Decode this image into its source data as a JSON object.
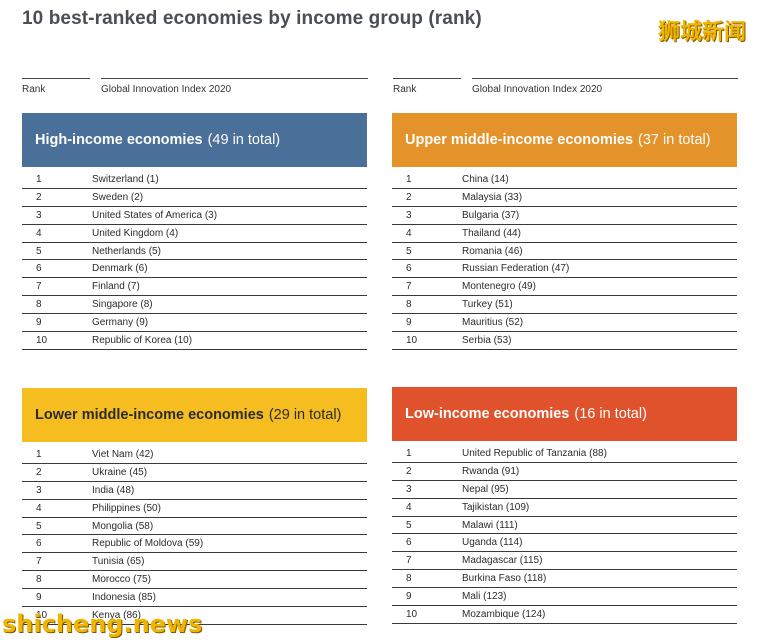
{
  "title": "10 best-ranked economies by income group (rank)",
  "watermark_top": "狮城新闻",
  "watermark_bottom": "shicheng.news",
  "column_headers": {
    "rank": "Rank",
    "index": "Global Innovation Index 2020"
  },
  "groups": [
    {
      "name": "High-income economies",
      "total": "(49 in total)",
      "color": "#4a6f98",
      "rows": [
        {
          "rank": "1",
          "economy": "Switzerland (1)"
        },
        {
          "rank": "2",
          "economy": "Sweden (2)"
        },
        {
          "rank": "3",
          "economy": "United States of America (3)"
        },
        {
          "rank": "4",
          "economy": "United Kingdom (4)"
        },
        {
          "rank": "5",
          "economy": "Netherlands (5)"
        },
        {
          "rank": "6",
          "economy": "Denmark (6)"
        },
        {
          "rank": "7",
          "economy": "Finland (7)"
        },
        {
          "rank": "8",
          "economy": "Singapore (8)"
        },
        {
          "rank": "9",
          "economy": "Germany (9)"
        },
        {
          "rank": "10",
          "economy": "Republic of Korea (10)"
        }
      ]
    },
    {
      "name": "Upper middle-income economies",
      "total": "(37 in total)",
      "color": "#e4922a",
      "rows": [
        {
          "rank": "1",
          "economy": "China (14)"
        },
        {
          "rank": "2",
          "economy": "Malaysia (33)"
        },
        {
          "rank": "3",
          "economy": "Bulgaria (37)"
        },
        {
          "rank": "4",
          "economy": "Thailand (44)"
        },
        {
          "rank": "5",
          "economy": "Romania (46)"
        },
        {
          "rank": "6",
          "economy": "Russian Federation (47)"
        },
        {
          "rank": "7",
          "economy": "Montenegro (49)"
        },
        {
          "rank": "8",
          "economy": "Turkey (51)"
        },
        {
          "rank": "9",
          "economy": "Mauritius (52)"
        },
        {
          "rank": "10",
          "economy": "Serbia (53)"
        }
      ]
    },
    {
      "name": "Lower middle-income economies",
      "total": "(29 in total)",
      "color": "#f5bd1f",
      "rows": [
        {
          "rank": "1",
          "economy": "Viet Nam (42)"
        },
        {
          "rank": "2",
          "economy": "Ukraine (45)"
        },
        {
          "rank": "3",
          "economy": "India (48)"
        },
        {
          "rank": "4",
          "economy": "Philippines (50)"
        },
        {
          "rank": "5",
          "economy": "Mongolia (58)"
        },
        {
          "rank": "6",
          "economy": "Republic of Moldova (59)"
        },
        {
          "rank": "7",
          "economy": "Tunisia (65)"
        },
        {
          "rank": "8",
          "economy": "Morocco (75)"
        },
        {
          "rank": "9",
          "economy": "Indonesia (85)"
        },
        {
          "rank": "10",
          "economy": "Kenya (86)"
        }
      ]
    },
    {
      "name": "Low-income economies",
      "total": "(16 in total)",
      "color": "#e0522b",
      "rows": [
        {
          "rank": "1",
          "economy": "United Republic of Tanzania (88)"
        },
        {
          "rank": "2",
          "economy": "Rwanda (91)"
        },
        {
          "rank": "3",
          "economy": "Nepal (95)"
        },
        {
          "rank": "4",
          "economy": "Tajikistan (109)"
        },
        {
          "rank": "5",
          "economy": "Malawi (111)"
        },
        {
          "rank": "6",
          "economy": "Uganda (114)"
        },
        {
          "rank": "7",
          "economy": "Madagascar (115)"
        },
        {
          "rank": "8",
          "economy": "Burkina Faso (118)"
        },
        {
          "rank": "9",
          "economy": "Mali (123)"
        },
        {
          "rank": "10",
          "economy": "Mozambique (124)"
        }
      ]
    }
  ]
}
